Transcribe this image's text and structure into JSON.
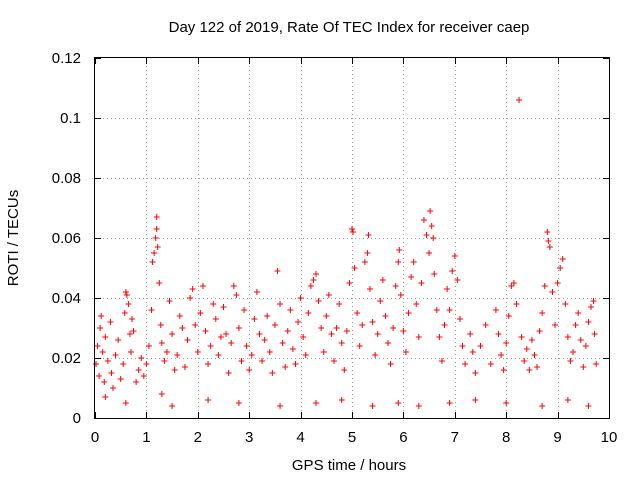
{
  "chart_data": {
    "type": "scatter",
    "title": "Day 122 of 2019, Rate Of TEC Index for receiver caep",
    "xlabel": "GPS time / hours",
    "ylabel": "ROTI / TECUs",
    "xlim": [
      0,
      10
    ],
    "ylim": [
      0,
      0.12
    ],
    "x_ticks": [
      0,
      1,
      2,
      3,
      4,
      5,
      6,
      7,
      8,
      9,
      10
    ],
    "y_ticks": [
      0,
      0.02,
      0.04,
      0.06,
      0.08,
      0.1,
      0.12
    ],
    "x_tick_labels": [
      "0",
      "1",
      "2",
      "3",
      "4",
      "5",
      "6",
      "7",
      "8",
      "9",
      "10"
    ],
    "y_tick_labels": [
      "0",
      "0.02",
      "0.04",
      "0.06",
      "0.08",
      "0.1",
      "0.12"
    ],
    "grid": true,
    "marker": "+",
    "marker_color": "#ff0000",
    "series": [
      {
        "name": "ROTI",
        "points": [
          [
            0.02,
            0.018
          ],
          [
            0.05,
            0.024
          ],
          [
            0.08,
            0.014
          ],
          [
            0.1,
            0.03
          ],
          [
            0.12,
            0.034
          ],
          [
            0.15,
            0.022
          ],
          [
            0.18,
            0.012
          ],
          [
            0.2,
            0.027
          ],
          [
            0.25,
            0.019
          ],
          [
            0.3,
            0.032
          ],
          [
            0.32,
            0.015
          ],
          [
            0.35,
            0.01
          ],
          [
            0.4,
            0.021
          ],
          [
            0.45,
            0.026
          ],
          [
            0.5,
            0.013
          ],
          [
            0.55,
            0.018
          ],
          [
            0.58,
            0.035
          ],
          [
            0.6,
            0.042
          ],
          [
            0.62,
            0.041
          ],
          [
            0.65,
            0.038
          ],
          [
            0.68,
            0.028
          ],
          [
            0.7,
            0.022
          ],
          [
            0.72,
            0.033
          ],
          [
            0.75,
            0.029
          ],
          [
            0.8,
            0.012
          ],
          [
            0.85,
            0.016
          ],
          [
            0.9,
            0.02
          ],
          [
            0.95,
            0.014
          ],
          [
            1.0,
            0.018
          ],
          [
            1.05,
            0.024
          ],
          [
            1.1,
            0.036
          ],
          [
            1.12,
            0.052
          ],
          [
            1.15,
            0.055
          ],
          [
            1.18,
            0.06
          ],
          [
            1.2,
            0.063
          ],
          [
            1.2,
            0.067
          ],
          [
            1.22,
            0.057
          ],
          [
            1.25,
            0.045
          ],
          [
            1.28,
            0.031
          ],
          [
            1.3,
            0.025
          ],
          [
            1.35,
            0.019
          ],
          [
            1.4,
            0.022
          ],
          [
            1.45,
            0.039
          ],
          [
            1.5,
            0.028
          ],
          [
            1.55,
            0.016
          ],
          [
            1.6,
            0.021
          ],
          [
            1.65,
            0.034
          ],
          [
            1.7,
            0.03
          ],
          [
            1.75,
            0.017
          ],
          [
            1.8,
            0.026
          ],
          [
            1.85,
            0.04
          ],
          [
            1.9,
            0.043
          ],
          [
            1.95,
            0.031
          ],
          [
            2.0,
            0.022
          ],
          [
            2.05,
            0.035
          ],
          [
            2.1,
            0.044
          ],
          [
            2.15,
            0.029
          ],
          [
            2.2,
            0.018
          ],
          [
            2.25,
            0.024
          ],
          [
            2.3,
            0.038
          ],
          [
            2.35,
            0.033
          ],
          [
            2.4,
            0.021
          ],
          [
            2.45,
            0.027
          ],
          [
            2.5,
            0.037
          ],
          [
            2.55,
            0.028
          ],
          [
            2.6,
            0.015
          ],
          [
            2.65,
            0.025
          ],
          [
            2.7,
            0.044
          ],
          [
            2.75,
            0.041
          ],
          [
            2.8,
            0.03
          ],
          [
            2.85,
            0.019
          ],
          [
            2.9,
            0.036
          ],
          [
            2.95,
            0.024
          ],
          [
            3.0,
            0.016
          ],
          [
            3.05,
            0.021
          ],
          [
            3.1,
            0.033
          ],
          [
            3.15,
            0.042
          ],
          [
            3.2,
            0.028
          ],
          [
            3.25,
            0.019
          ],
          [
            3.3,
            0.026
          ],
          [
            3.35,
            0.034
          ],
          [
            3.4,
            0.022
          ],
          [
            3.45,
            0.015
          ],
          [
            3.5,
            0.031
          ],
          [
            3.55,
            0.049
          ],
          [
            3.6,
            0.038
          ],
          [
            3.65,
            0.025
          ],
          [
            3.7,
            0.017
          ],
          [
            3.75,
            0.029
          ],
          [
            3.8,
            0.036
          ],
          [
            3.85,
            0.023
          ],
          [
            3.9,
            0.018
          ],
          [
            3.95,
            0.032
          ],
          [
            4.0,
            0.04
          ],
          [
            4.05,
            0.027
          ],
          [
            4.1,
            0.021
          ],
          [
            4.15,
            0.035
          ],
          [
            4.2,
            0.044
          ],
          [
            4.25,
            0.046
          ],
          [
            4.3,
            0.048
          ],
          [
            4.35,
            0.039
          ],
          [
            4.4,
            0.03
          ],
          [
            4.45,
            0.022
          ],
          [
            4.5,
            0.034
          ],
          [
            4.55,
            0.041
          ],
          [
            4.6,
            0.028
          ],
          [
            4.65,
            0.019
          ],
          [
            4.7,
            0.03
          ],
          [
            4.75,
            0.038
          ],
          [
            4.8,
            0.025
          ],
          [
            4.85,
            0.016
          ],
          [
            4.9,
            0.029
          ],
          [
            4.95,
            0.045
          ],
          [
            5.0,
            0.063
          ],
          [
            5.02,
            0.062
          ],
          [
            5.05,
            0.05
          ],
          [
            5.1,
            0.035
          ],
          [
            5.15,
            0.024
          ],
          [
            5.2,
            0.031
          ],
          [
            5.25,
            0.052
          ],
          [
            5.3,
            0.055
          ],
          [
            5.32,
            0.061
          ],
          [
            5.35,
            0.043
          ],
          [
            5.4,
            0.032
          ],
          [
            5.45,
            0.021
          ],
          [
            5.5,
            0.028
          ],
          [
            5.55,
            0.039
          ],
          [
            5.6,
            0.046
          ],
          [
            5.65,
            0.034
          ],
          [
            5.7,
            0.025
          ],
          [
            5.75,
            0.018
          ],
          [
            5.8,
            0.03
          ],
          [
            5.85,
            0.044
          ],
          [
            5.9,
            0.052
          ],
          [
            5.92,
            0.056
          ],
          [
            5.95,
            0.041
          ],
          [
            6.0,
            0.029
          ],
          [
            6.05,
            0.022
          ],
          [
            6.1,
            0.035
          ],
          [
            6.15,
            0.047
          ],
          [
            6.2,
            0.052
          ],
          [
            6.25,
            0.038
          ],
          [
            6.3,
            0.027
          ],
          [
            6.35,
            0.045
          ],
          [
            6.4,
            0.066
          ],
          [
            6.45,
            0.061
          ],
          [
            6.5,
            0.055
          ],
          [
            6.52,
            0.069
          ],
          [
            6.55,
            0.064
          ],
          [
            6.58,
            0.06
          ],
          [
            6.6,
            0.048
          ],
          [
            6.65,
            0.036
          ],
          [
            6.7,
            0.027
          ],
          [
            6.75,
            0.019
          ],
          [
            6.8,
            0.031
          ],
          [
            6.85,
            0.043
          ],
          [
            6.9,
            0.036
          ],
          [
            6.95,
            0.049
          ],
          [
            7.0,
            0.054
          ],
          [
            7.05,
            0.046
          ],
          [
            7.1,
            0.033
          ],
          [
            7.15,
            0.024
          ],
          [
            7.2,
            0.018
          ],
          [
            7.3,
            0.028
          ],
          [
            7.35,
            0.022
          ],
          [
            7.4,
            0.015
          ],
          [
            7.5,
            0.024
          ],
          [
            7.6,
            0.031
          ],
          [
            7.7,
            0.018
          ],
          [
            7.8,
            0.036
          ],
          [
            7.85,
            0.028
          ],
          [
            7.9,
            0.021
          ],
          [
            7.95,
            0.016
          ],
          [
            8.0,
            0.025
          ],
          [
            8.05,
            0.034
          ],
          [
            8.1,
            0.044
          ],
          [
            8.15,
            0.045
          ],
          [
            8.2,
            0.038
          ],
          [
            8.25,
            0.106
          ],
          [
            8.3,
            0.027
          ],
          [
            8.35,
            0.019
          ],
          [
            8.4,
            0.023
          ],
          [
            8.45,
            0.016
          ],
          [
            8.5,
            0.026
          ],
          [
            8.55,
            0.021
          ],
          [
            8.6,
            0.017
          ],
          [
            8.65,
            0.029
          ],
          [
            8.7,
            0.035
          ],
          [
            8.75,
            0.044
          ],
          [
            8.8,
            0.062
          ],
          [
            8.82,
            0.059
          ],
          [
            8.85,
            0.057
          ],
          [
            8.9,
            0.042
          ],
          [
            8.95,
            0.031
          ],
          [
            9.0,
            0.045
          ],
          [
            9.05,
            0.05
          ],
          [
            9.1,
            0.053
          ],
          [
            9.15,
            0.038
          ],
          [
            9.2,
            0.027
          ],
          [
            9.25,
            0.019
          ],
          [
            9.3,
            0.022
          ],
          [
            9.35,
            0.031
          ],
          [
            9.4,
            0.035
          ],
          [
            9.45,
            0.026
          ],
          [
            9.5,
            0.017
          ],
          [
            9.55,
            0.024
          ],
          [
            9.6,
            0.032
          ],
          [
            9.65,
            0.037
          ],
          [
            9.7,
            0.039
          ],
          [
            9.72,
            0.028
          ],
          [
            9.75,
            0.018
          ],
          [
            0.2,
            0.007
          ],
          [
            0.6,
            0.005
          ],
          [
            1.3,
            0.008
          ],
          [
            1.5,
            0.004
          ],
          [
            2.2,
            0.006
          ],
          [
            2.8,
            0.005
          ],
          [
            3.6,
            0.004
          ],
          [
            4.3,
            0.005
          ],
          [
            4.8,
            0.006
          ],
          [
            5.4,
            0.004
          ],
          [
            5.9,
            0.005
          ],
          [
            6.3,
            0.004
          ],
          [
            6.9,
            0.005
          ],
          [
            7.4,
            0.006
          ],
          [
            8.0,
            0.005
          ],
          [
            8.7,
            0.004
          ],
          [
            9.2,
            0.006
          ],
          [
            9.6,
            0.004
          ]
        ]
      }
    ]
  }
}
